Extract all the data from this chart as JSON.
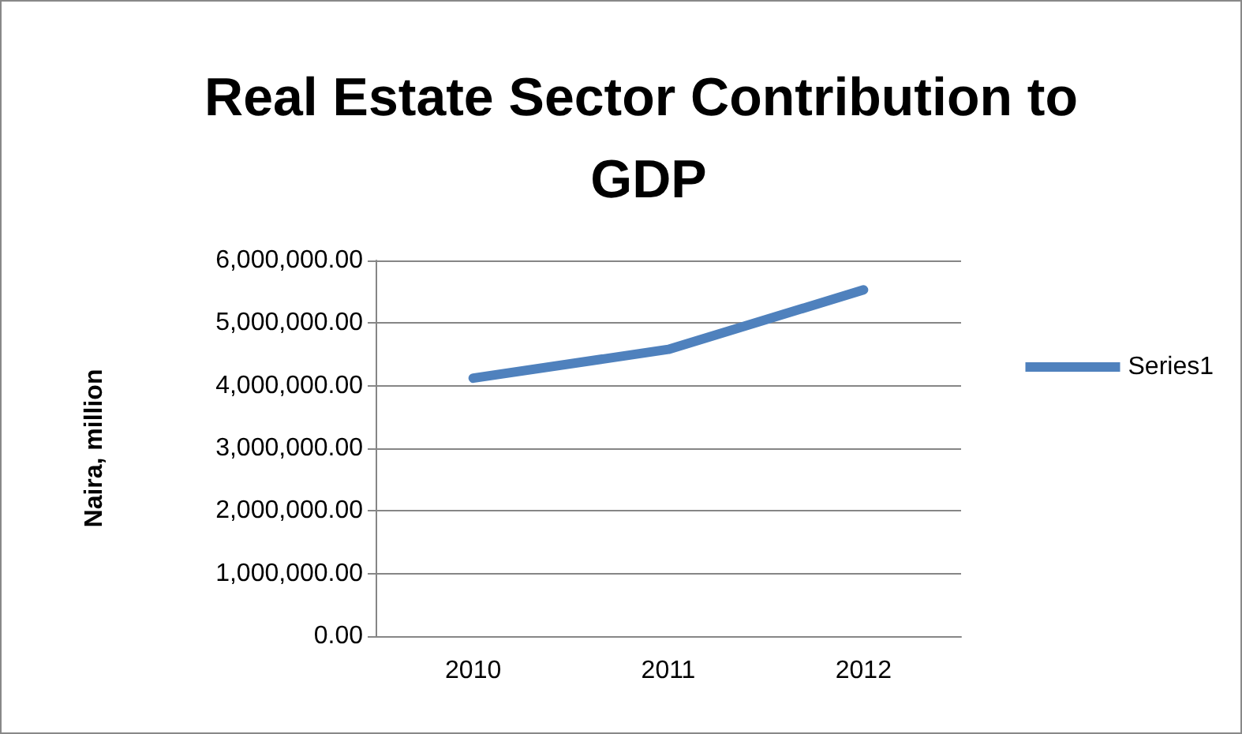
{
  "chart_data": {
    "type": "line",
    "title": "Real Estate Sector Contribution to GDP",
    "ylabel": "Naira, million",
    "categories": [
      "2010",
      "2011",
      "2012"
    ],
    "series": [
      {
        "name": "Series1",
        "color": "#4f81bd",
        "values": [
          4120000,
          4580000,
          5530000
        ]
      }
    ],
    "ylim": [
      0,
      6000000
    ],
    "yticks": [
      {
        "value": 0,
        "label": "0.00"
      },
      {
        "value": 1000000,
        "label": "1,000,000.00"
      },
      {
        "value": 2000000,
        "label": "2,000,000.00"
      },
      {
        "value": 3000000,
        "label": "3,000,000.00"
      },
      {
        "value": 4000000,
        "label": "4,000,000.00"
      },
      {
        "value": 5000000,
        "label": "5,000,000.00"
      },
      {
        "value": 6000000,
        "label": "6,000,000.00"
      }
    ],
    "grid": "y",
    "legend": "right",
    "marker": "none",
    "line_style": "solid"
  }
}
